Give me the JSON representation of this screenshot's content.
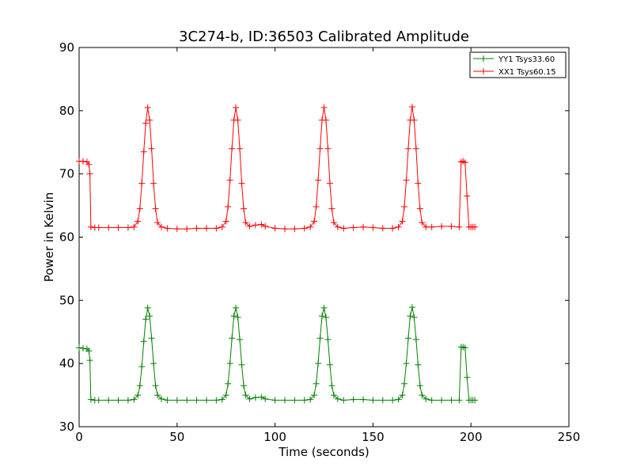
{
  "chart_data": {
    "type": "line",
    "title": "3C274-b, ID:36503 Calibrated Amplitude",
    "xlabel": "Time (seconds)",
    "ylabel": "Power in Kelvin",
    "xlim": [
      0,
      250
    ],
    "ylim": [
      30,
      90
    ],
    "xticks": [
      "0",
      "50",
      "100",
      "150",
      "200",
      "250"
    ],
    "yticks": [
      "30",
      "40",
      "50",
      "60",
      "70",
      "80",
      "90"
    ],
    "grid": false,
    "legend_position": "top-right",
    "marker": "+",
    "series": [
      {
        "name": "YY1 Tsys33.60",
        "color": "#008000",
        "x": [
          0,
          2,
          4,
          5,
          5.5,
          6,
          8,
          10,
          15,
          20,
          25,
          28,
          30,
          31,
          32,
          33,
          34,
          35,
          36,
          37,
          38,
          39,
          40,
          42,
          45,
          50,
          55,
          60,
          65,
          70,
          73,
          75,
          76,
          77,
          78,
          79,
          80,
          81,
          82,
          83,
          84,
          85,
          87,
          90,
          93,
          95,
          100,
          105,
          110,
          115,
          118,
          120,
          121,
          122,
          123,
          124,
          125,
          126,
          127,
          128,
          129,
          130,
          132,
          135,
          140,
          145,
          150,
          155,
          160,
          163,
          165,
          166,
          167,
          168,
          169,
          170,
          171,
          172,
          173,
          174,
          175,
          177,
          180,
          185,
          190,
          194,
          195,
          196,
          197,
          198,
          199,
          200,
          201,
          202
        ],
        "y": [
          42.5,
          42.4,
          42.3,
          42.0,
          40.5,
          34.3,
          34.2,
          34.2,
          34.2,
          34.2,
          34.2,
          34.3,
          35.0,
          36.5,
          39.5,
          43.5,
          47.0,
          48.8,
          47.5,
          44.0,
          40.0,
          36.5,
          35.0,
          34.4,
          34.2,
          34.2,
          34.2,
          34.2,
          34.2,
          34.2,
          34.3,
          35.0,
          36.8,
          40.0,
          44.0,
          47.5,
          48.8,
          47.3,
          43.8,
          39.8,
          36.5,
          35.0,
          34.4,
          34.6,
          34.7,
          34.4,
          34.2,
          34.2,
          34.2,
          34.2,
          34.3,
          35.0,
          36.8,
          40.0,
          44.0,
          47.5,
          48.8,
          47.3,
          43.8,
          39.8,
          36.5,
          35.0,
          34.4,
          34.2,
          34.3,
          34.3,
          34.2,
          34.2,
          34.2,
          34.3,
          35.0,
          36.8,
          40.0,
          44.0,
          47.5,
          48.9,
          47.3,
          43.8,
          39.8,
          36.5,
          35.0,
          34.4,
          34.2,
          34.2,
          34.2,
          34.2,
          42.6,
          42.6,
          42.5,
          37.8,
          34.2,
          34.2,
          34.2,
          34.2
        ]
      },
      {
        "name": "XX1 Tsys60.15",
        "color": "#ff0000",
        "x": [
          0,
          2,
          4,
          5,
          5.5,
          6,
          8,
          10,
          15,
          20,
          25,
          28,
          30,
          31,
          32,
          33,
          34,
          35,
          36,
          37,
          38,
          39,
          40,
          42,
          45,
          50,
          55,
          60,
          65,
          70,
          73,
          75,
          76,
          77,
          78,
          79,
          80,
          81,
          82,
          83,
          84,
          85,
          87,
          90,
          93,
          95,
          100,
          105,
          110,
          115,
          118,
          120,
          121,
          122,
          123,
          124,
          125,
          126,
          127,
          128,
          129,
          130,
          132,
          135,
          140,
          145,
          150,
          155,
          160,
          163,
          165,
          166,
          167,
          168,
          169,
          170,
          171,
          172,
          173,
          174,
          175,
          177,
          180,
          185,
          190,
          194,
          195,
          196,
          197,
          198,
          199,
          200,
          201,
          202
        ],
        "y": [
          72.0,
          72.0,
          71.9,
          71.5,
          70.0,
          61.6,
          61.5,
          61.5,
          61.5,
          61.5,
          61.5,
          61.6,
          62.5,
          64.5,
          68.5,
          73.5,
          78.0,
          80.5,
          78.5,
          74.0,
          68.5,
          64.5,
          62.3,
          61.6,
          61.4,
          61.3,
          61.3,
          61.4,
          61.4,
          61.4,
          61.6,
          62.5,
          64.8,
          69.0,
          74.0,
          78.5,
          80.5,
          78.5,
          74.0,
          68.5,
          64.5,
          62.3,
          61.7,
          61.9,
          62.0,
          61.7,
          61.4,
          61.3,
          61.3,
          61.4,
          61.6,
          62.5,
          64.8,
          69.0,
          74.0,
          78.5,
          80.5,
          78.5,
          74.0,
          68.5,
          64.5,
          62.3,
          61.6,
          61.4,
          61.5,
          61.6,
          61.5,
          61.4,
          61.4,
          61.6,
          62.5,
          64.8,
          69.0,
          74.0,
          78.5,
          80.6,
          78.5,
          74.0,
          68.5,
          64.5,
          62.3,
          61.6,
          61.6,
          61.7,
          61.7,
          61.6,
          71.9,
          72.0,
          71.8,
          66.5,
          61.6,
          61.6,
          61.6,
          61.6
        ]
      }
    ]
  }
}
